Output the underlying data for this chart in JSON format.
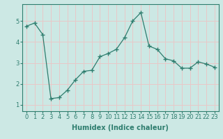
{
  "x": [
    0,
    1,
    2,
    3,
    4,
    5,
    6,
    7,
    8,
    9,
    10,
    11,
    12,
    13,
    14,
    15,
    16,
    17,
    18,
    19,
    20,
    21,
    22,
    23
  ],
  "y": [
    4.75,
    4.9,
    4.35,
    1.3,
    1.35,
    1.7,
    2.2,
    2.6,
    2.65,
    3.3,
    3.45,
    3.65,
    4.2,
    5.0,
    5.4,
    3.8,
    3.65,
    3.2,
    3.1,
    2.75,
    2.75,
    3.05,
    2.95,
    2.8
  ],
  "line_color": "#2e7d6e",
  "marker": "+",
  "marker_size": 4,
  "marker_linewidth": 1.0,
  "bg_color": "#cce8e4",
  "grid_color": "#e8c8c8",
  "xlabel": "Humidex (Indice chaleur)",
  "xlabel_fontsize": 7,
  "ylabel_ticks": [
    1,
    2,
    3,
    4,
    5
  ],
  "xlim": [
    -0.5,
    23.5
  ],
  "ylim": [
    0.7,
    5.8
  ],
  "tick_label_fontsize": 6,
  "line_width": 0.9
}
